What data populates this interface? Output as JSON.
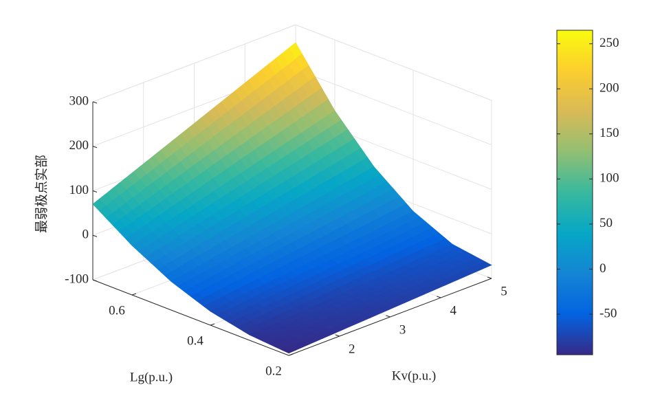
{
  "chart_data": {
    "type": "surface",
    "xlabel": "Lg(p.u.)",
    "ylabel": "Kv(p.u.)",
    "zlabel": "最弱极点实部",
    "x": [
      0.2,
      0.3,
      0.4,
      0.5,
      0.6,
      0.7
    ],
    "y": [
      1,
      1.8,
      2.6,
      3.4,
      4.2,
      5
    ],
    "z": [
      [
        -95,
        -90,
        -85,
        -80,
        -75,
        -70
      ],
      [
        -88,
        -82,
        -76,
        -69,
        -63,
        -57
      ],
      [
        -69,
        -58,
        -48,
        -38,
        -28,
        -17
      ],
      [
        -36,
        -19,
        -2,
        15,
        32,
        49
      ],
      [
        11,
        37,
        63,
        89,
        115,
        141
      ],
      [
        70,
        108,
        146,
        184,
        222,
        260
      ]
    ],
    "xlim": [
      0.2,
      0.7
    ],
    "xticks": [
      0.2,
      0.4,
      0.6
    ],
    "ylim": [
      1,
      5
    ],
    "yticks": [
      2,
      3,
      4,
      5
    ],
    "zlim": [
      -100,
      300
    ],
    "zticks": [
      -100,
      0,
      100,
      200,
      300
    ],
    "grid": true,
    "colormap": "parula",
    "colorbar": {
      "clim": [
        -95,
        265
      ],
      "ticks": [
        -50,
        0,
        50,
        100,
        150,
        200,
        250
      ]
    }
  }
}
